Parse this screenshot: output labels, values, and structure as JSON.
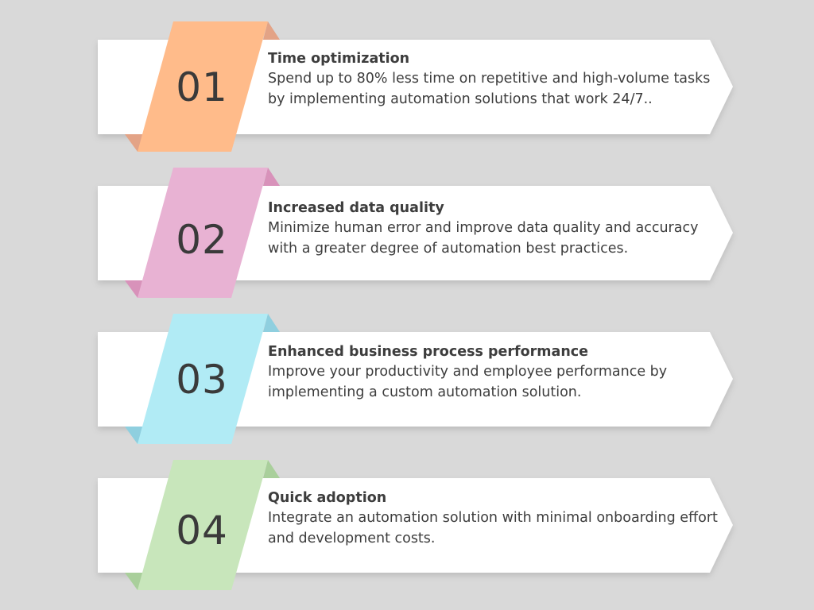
{
  "steps": [
    {
      "number": "01",
      "title": "Time optimization",
      "description": "Spend up to 80% less time on repetitive and high-volume tasks by implementing automation solutions that work 24/7..",
      "tab_color": "#ffbb8a",
      "fold_color": "#e3a386"
    },
    {
      "number": "02",
      "title": "Increased data quality",
      "description": "Minimize human error and improve data quality and accuracy with a greater degree of automation best practices.",
      "tab_color": "#e8b2d3",
      "fold_color": "#d892ba"
    },
    {
      "number": "03",
      "title": "Enhanced business process performance",
      "description": "Improve your productivity and employee performance by implementing a custom automation solution.",
      "tab_color": "#b1ebf5",
      "fold_color": "#8fcfdf"
    },
    {
      "number": "04",
      "title": "Quick adoption",
      "description": "Integrate an automation solution with minimal onboarding effort and development costs.",
      "tab_color": "#c8e6bb",
      "fold_color": "#a9cf9b"
    }
  ]
}
